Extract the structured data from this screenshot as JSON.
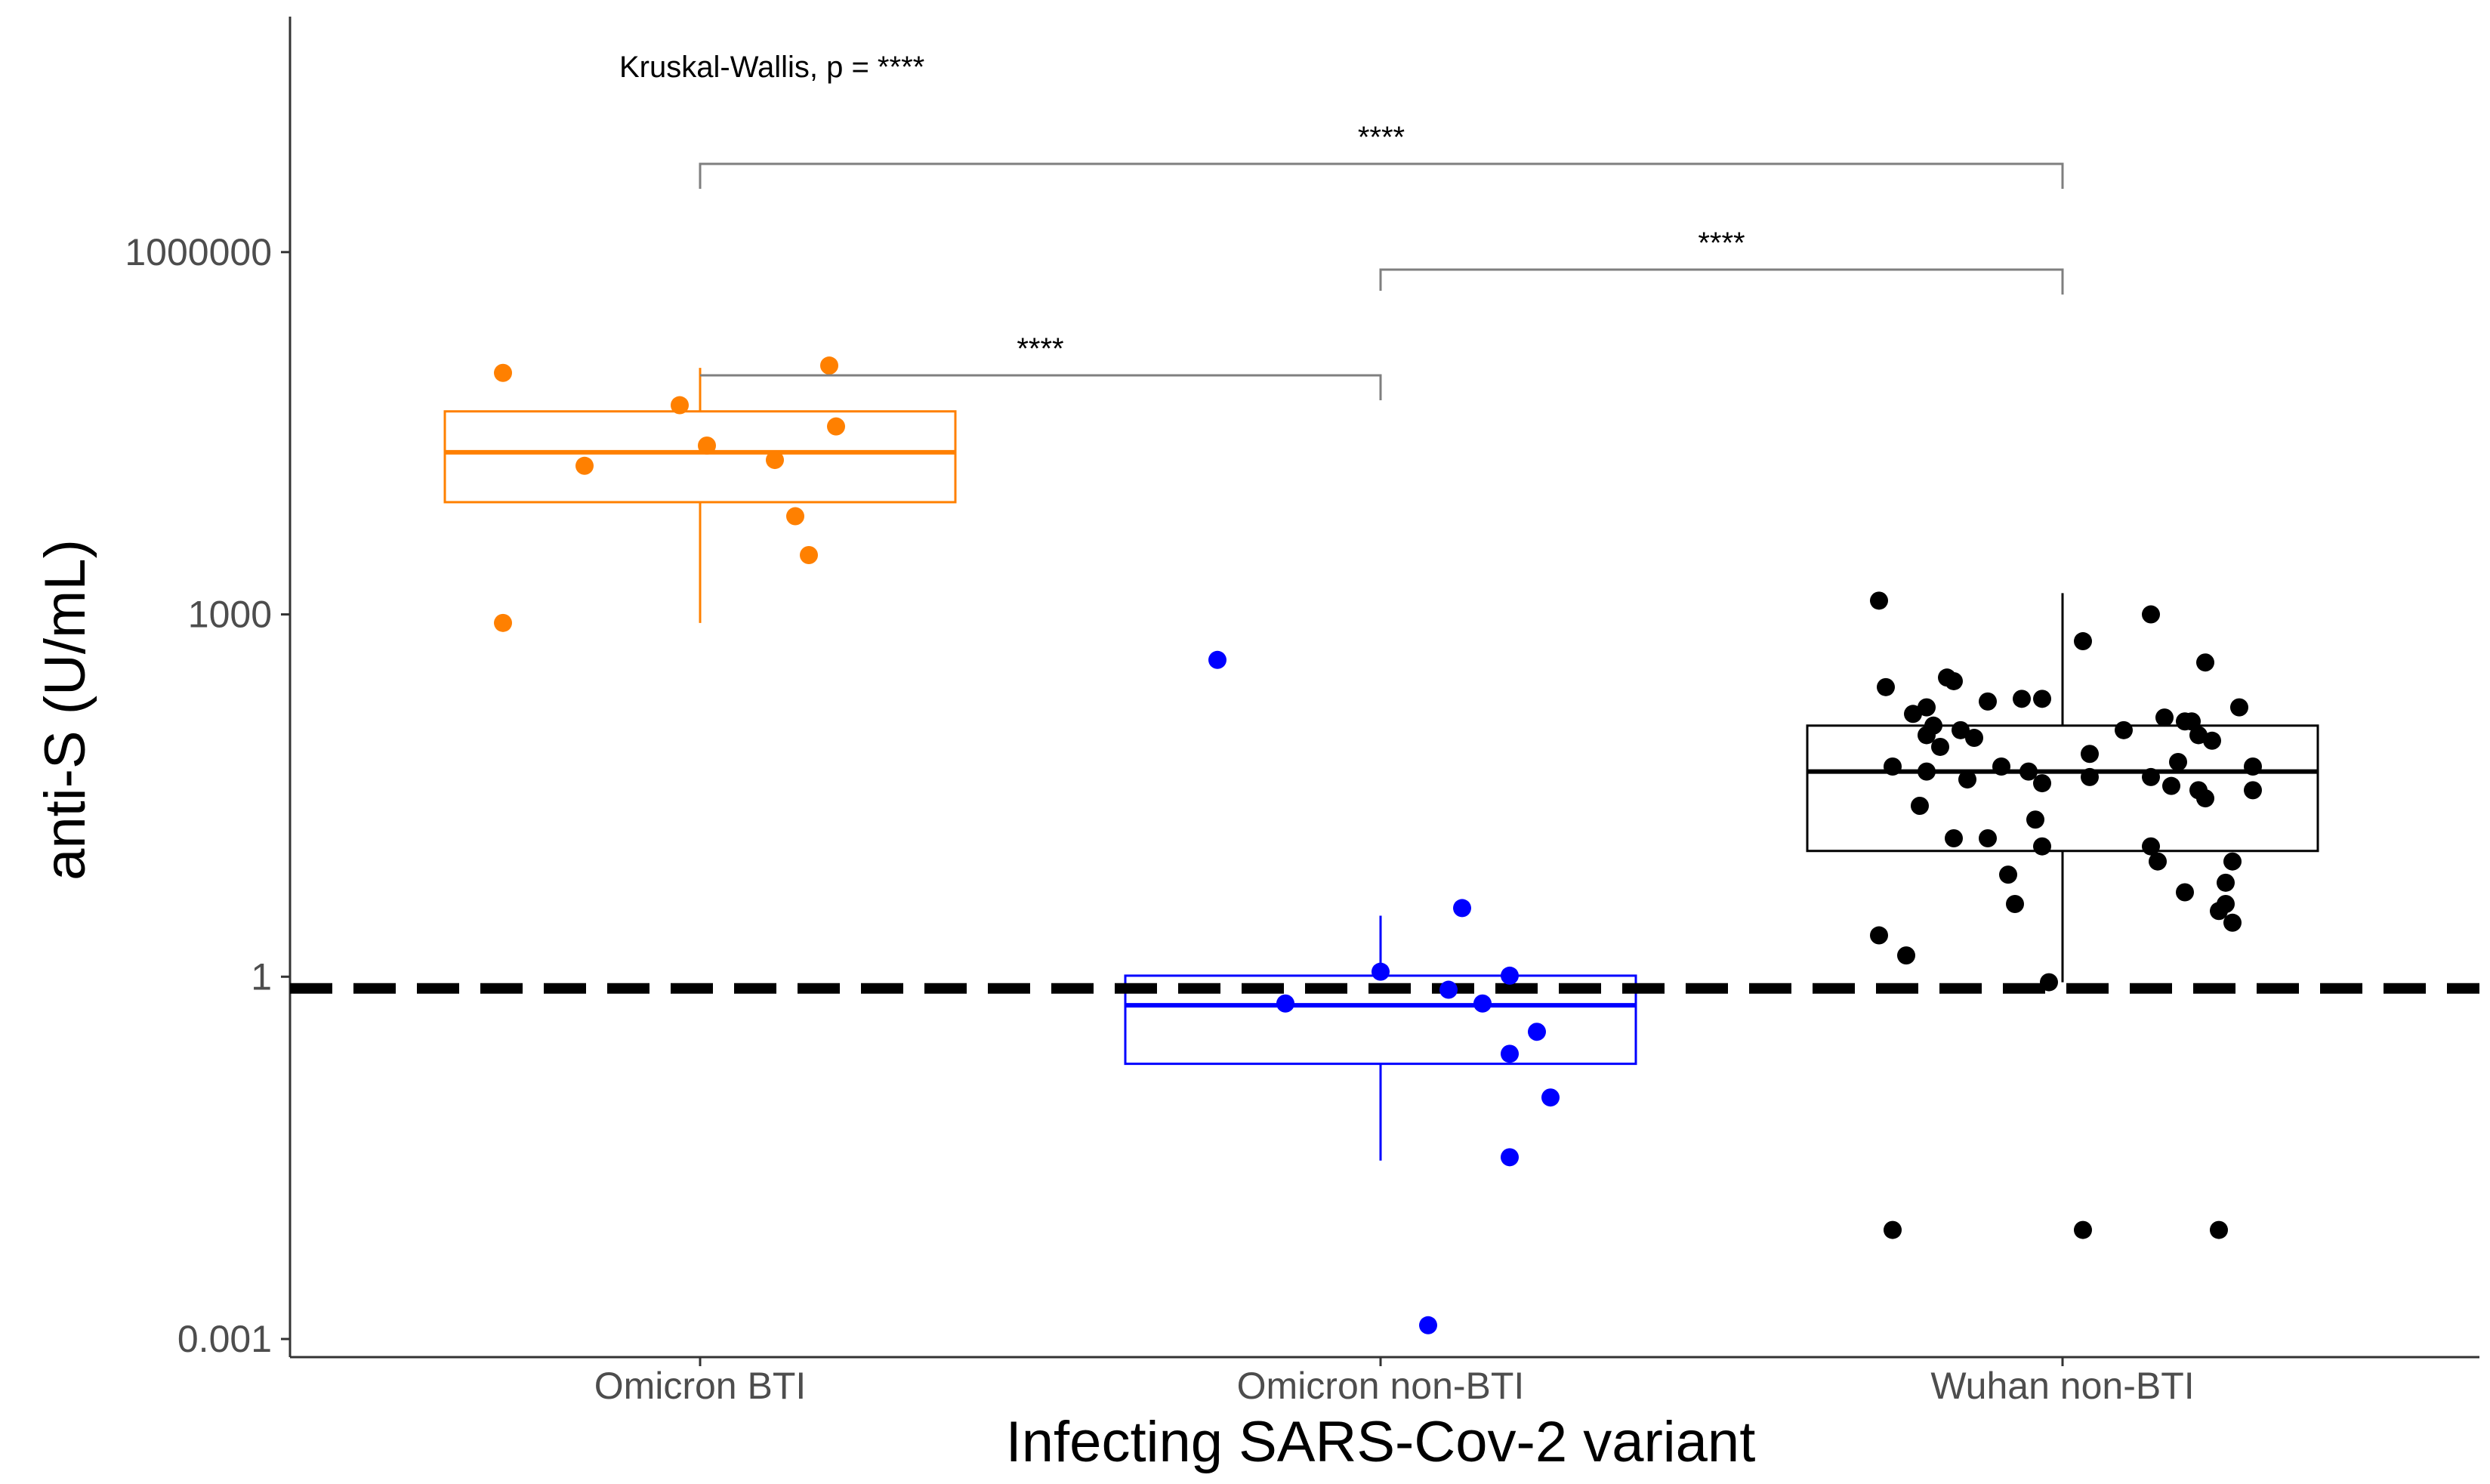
{
  "chart_data": {
    "type": "box-jitter",
    "title": "",
    "xlabel": "Infecting SARS-Cov-2 variant",
    "ylabel": "anti-S (U/mL)",
    "yscale": "log10",
    "ylim_log10": [
      -3.15,
      7.95
    ],
    "yticks": [
      {
        "value": 0.001,
        "label": "0.001"
      },
      {
        "value": 1,
        "label": "1"
      },
      {
        "value": 1000,
        "label": "1000"
      },
      {
        "value": 1000000,
        "label": "1000000"
      }
    ],
    "threshold_line": 0.8,
    "annotation": "Kruskal-Wallis, p = ****",
    "groups": [
      {
        "name": "Omicron BTI",
        "color": "#FF8000",
        "box": {
          "min": 850,
          "q1": 8500,
          "median": 22000,
          "q3": 48000,
          "max": 110000
        },
        "points": [
          {
            "dx": -0.29,
            "y": 100000
          },
          {
            "dx": -0.29,
            "y": 850
          },
          {
            "dx": -0.17,
            "y": 17000
          },
          {
            "dx": -0.03,
            "y": 54000
          },
          {
            "dx": 0.01,
            "y": 25000
          },
          {
            "dx": 0.11,
            "y": 19000
          },
          {
            "dx": 0.14,
            "y": 6500
          },
          {
            "dx": 0.16,
            "y": 3100
          },
          {
            "dx": 0.19,
            "y": 115000
          },
          {
            "dx": 0.2,
            "y": 36000
          }
        ]
      },
      {
        "name": "Omicron non-BTI",
        "color": "#0000FF",
        "box": {
          "min": 0.03,
          "q1": 0.19,
          "median": 0.58,
          "q3": 1.02,
          "max": 3.2
        },
        "points": [
          {
            "dx": -0.24,
            "y": 420
          },
          {
            "dx": -0.14,
            "y": 0.6
          },
          {
            "dx": 0.0,
            "y": 1.1
          },
          {
            "dx": 0.07,
            "y": 0.0013
          },
          {
            "dx": 0.1,
            "y": 0.78
          },
          {
            "dx": 0.12,
            "y": 3.7
          },
          {
            "dx": 0.15,
            "y": 0.6
          },
          {
            "dx": 0.19,
            "y": 1.02
          },
          {
            "dx": 0.19,
            "y": 0.23
          },
          {
            "dx": 0.19,
            "y": 0.032
          },
          {
            "dx": 0.23,
            "y": 0.35
          },
          {
            "dx": 0.25,
            "y": 0.1
          }
        ]
      },
      {
        "name": "Wuhan non-BTI",
        "color": "#000000",
        "box": {
          "min": 0.9,
          "q1": 11,
          "median": 50,
          "q3": 120,
          "max": 1500
        },
        "points": [
          {
            "dx": -0.27,
            "y": 2.2
          },
          {
            "dx": -0.27,
            "y": 1300
          },
          {
            "dx": -0.26,
            "y": 250
          },
          {
            "dx": -0.25,
            "y": 0.008
          },
          {
            "dx": -0.25,
            "y": 55
          },
          {
            "dx": -0.23,
            "y": 1.5
          },
          {
            "dx": -0.22,
            "y": 150
          },
          {
            "dx": -0.21,
            "y": 26
          },
          {
            "dx": -0.2,
            "y": 50
          },
          {
            "dx": -0.2,
            "y": 100
          },
          {
            "dx": -0.2,
            "y": 170
          },
          {
            "dx": -0.19,
            "y": 120
          },
          {
            "dx": -0.18,
            "y": 80
          },
          {
            "dx": -0.17,
            "y": 300
          },
          {
            "dx": -0.16,
            "y": 280
          },
          {
            "dx": -0.16,
            "y": 14
          },
          {
            "dx": -0.15,
            "y": 110
          },
          {
            "dx": -0.14,
            "y": 43
          },
          {
            "dx": -0.13,
            "y": 95
          },
          {
            "dx": -0.11,
            "y": 14
          },
          {
            "dx": -0.11,
            "y": 190
          },
          {
            "dx": -0.09,
            "y": 55
          },
          {
            "dx": -0.08,
            "y": 7
          },
          {
            "dx": -0.07,
            "y": 4
          },
          {
            "dx": -0.06,
            "y": 200
          },
          {
            "dx": -0.05,
            "y": 50
          },
          {
            "dx": -0.04,
            "y": 20
          },
          {
            "dx": -0.03,
            "y": 40
          },
          {
            "dx": -0.03,
            "y": 200
          },
          {
            "dx": -0.03,
            "y": 12
          },
          {
            "dx": -0.02,
            "y": 0.9
          },
          {
            "dx": 0.03,
            "y": 0.008
          },
          {
            "dx": 0.03,
            "y": 600
          },
          {
            "dx": 0.04,
            "y": 70
          },
          {
            "dx": 0.04,
            "y": 45
          },
          {
            "dx": 0.09,
            "y": 110
          },
          {
            "dx": 0.13,
            "y": 45
          },
          {
            "dx": 0.13,
            "y": 1000
          },
          {
            "dx": 0.13,
            "y": 12
          },
          {
            "dx": 0.14,
            "y": 9
          },
          {
            "dx": 0.15,
            "y": 140
          },
          {
            "dx": 0.16,
            "y": 38
          },
          {
            "dx": 0.17,
            "y": 60
          },
          {
            "dx": 0.18,
            "y": 130
          },
          {
            "dx": 0.18,
            "y": 5
          },
          {
            "dx": 0.19,
            "y": 130
          },
          {
            "dx": 0.2,
            "y": 100
          },
          {
            "dx": 0.2,
            "y": 35
          },
          {
            "dx": 0.21,
            "y": 30
          },
          {
            "dx": 0.21,
            "y": 400
          },
          {
            "dx": 0.22,
            "y": 90
          },
          {
            "dx": 0.23,
            "y": 3.5
          },
          {
            "dx": 0.23,
            "y": 0.008
          },
          {
            "dx": 0.24,
            "y": 4
          },
          {
            "dx": 0.24,
            "y": 6
          },
          {
            "dx": 0.25,
            "y": 9
          },
          {
            "dx": 0.26,
            "y": 170
          },
          {
            "dx": 0.28,
            "y": 55
          },
          {
            "dx": 0.28,
            "y": 35
          },
          {
            "dx": 0.25,
            "y": 2.8
          }
        ]
      }
    ],
    "comparisons": [
      {
        "from": 0,
        "to": 1,
        "label": "****"
      },
      {
        "from": 1,
        "to": 2,
        "label": "****"
      },
      {
        "from": 0,
        "to": 2,
        "label": "****"
      }
    ]
  }
}
